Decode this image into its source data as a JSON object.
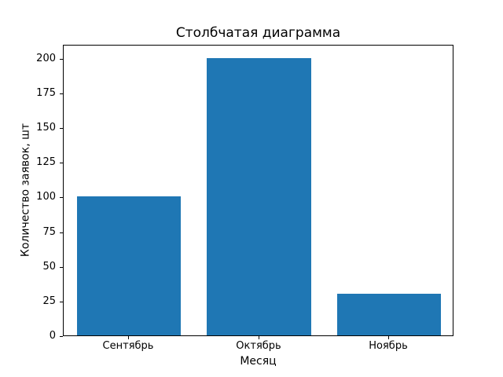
{
  "chart_data": {
    "type": "bar",
    "title": "Столбчатая диаграмма",
    "xlabel": "Месяц",
    "ylabel": "Количество заявок, шт",
    "categories": [
      "Сентябрь",
      "Октябрь",
      "Ноябрь"
    ],
    "values": [
      100,
      200,
      30
    ],
    "yticks": [
      0,
      25,
      50,
      75,
      100,
      125,
      150,
      175,
      200
    ],
    "ylim": [
      0,
      210
    ],
    "bar_width_fraction": 0.8,
    "bar_color": "#1f77b4",
    "axis_color": "#000000",
    "background_color": "#ffffff",
    "grid": false,
    "legend": null
  }
}
